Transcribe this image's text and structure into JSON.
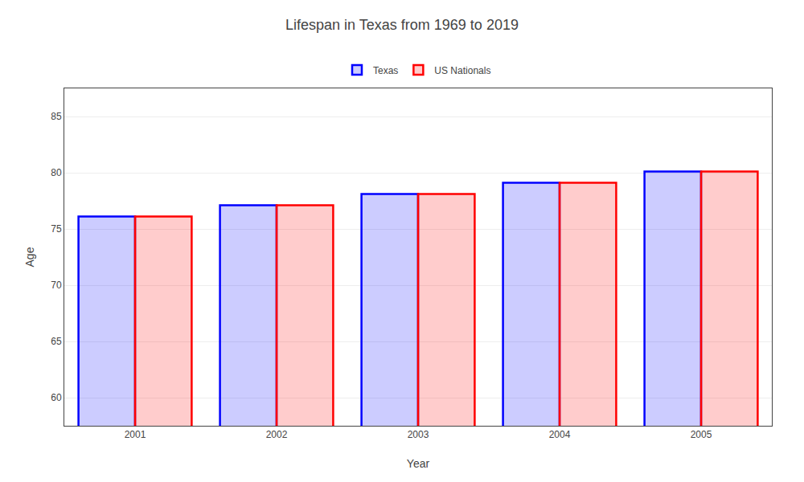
{
  "chart_data": {
    "type": "bar",
    "title": "Lifespan in Texas from 1969 to 2019",
    "xlabel": "Year",
    "ylabel": "Age",
    "categories": [
      "2001",
      "2002",
      "2003",
      "2004",
      "2005"
    ],
    "series": [
      {
        "name": "Texas",
        "color": "#0000ff",
        "values": [
          76.1,
          77.1,
          78.1,
          79.1,
          80.1
        ]
      },
      {
        "name": "US Nationals",
        "color": "#ff0000",
        "values": [
          76.1,
          77.1,
          78.1,
          79.1,
          80.1
        ]
      }
    ],
    "ylim": [
      57.5,
      87.5
    ],
    "yticks": [
      60,
      65,
      70,
      75,
      80,
      85
    ],
    "grid": true,
    "legend": "top"
  }
}
